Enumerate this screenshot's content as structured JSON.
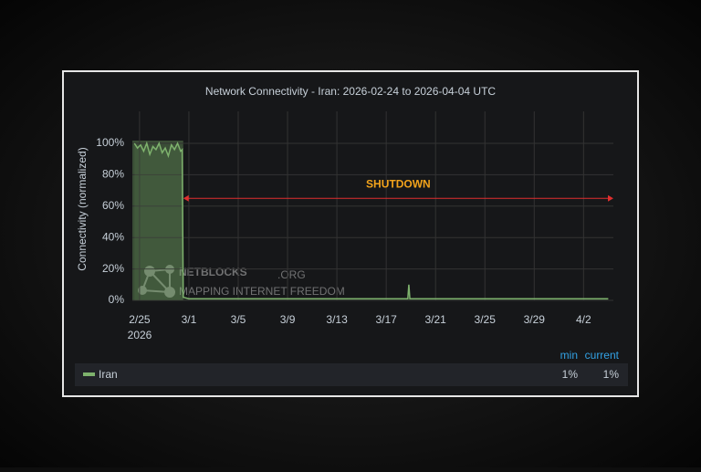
{
  "chart_data": {
    "type": "line",
    "title": "Network Connectivity - Iran: 2026-02-24 to 2026-04-04 UTC",
    "y_label": "Connectivity (normalized)",
    "x_year": "2026",
    "x": [
      "2026-02-24T14:00",
      "2026-02-24T20:00",
      "2026-02-25T02:00",
      "2026-02-25T08:00",
      "2026-02-25T14:00",
      "2026-02-25T20:00",
      "2026-02-26T02:00",
      "2026-02-26T08:00",
      "2026-02-26T14:00",
      "2026-02-26T20:00",
      "2026-02-27T02:00",
      "2026-02-27T08:00",
      "2026-02-27T14:00",
      "2026-02-27T20:00",
      "2026-02-28T02:00",
      "2026-02-28T08:00",
      "2026-02-28T11:00",
      "2026-02-28T13:00",
      "2026-03-01T00:00",
      "2026-03-03T00:00",
      "2026-03-05T00:00",
      "2026-03-07T00:00",
      "2026-03-09T00:00",
      "2026-03-11T00:00",
      "2026-03-13T00:00",
      "2026-03-15T00:00",
      "2026-03-17T00:00",
      "2026-03-18T18:00",
      "2026-03-18T20:00",
      "2026-03-18T22:00",
      "2026-03-20T00:00",
      "2026-03-22T00:00",
      "2026-03-24T00:00",
      "2026-03-26T00:00",
      "2026-03-28T00:00",
      "2026-03-30T00:00",
      "2026-04-01T00:00",
      "2026-04-03T00:00",
      "2026-04-04T00:00"
    ],
    "series": [
      {
        "name": "Iran",
        "color": "#7eb26d",
        "values": [
          100,
          97,
          99,
          95,
          100,
          93,
          98,
          96,
          100,
          94,
          97,
          92,
          99,
          96,
          100,
          95,
          96,
          2,
          1,
          1,
          1,
          1,
          1,
          1,
          1,
          1,
          1,
          1,
          10,
          1,
          1,
          1,
          1,
          1,
          1,
          1,
          1,
          1,
          1
        ]
      }
    ],
    "xlim": [
      "2026-02-24T10:00",
      "2026-04-04T10:00"
    ],
    "xticks": [
      {
        "value": "2026-02-25T00:00",
        "label": "2/25"
      },
      {
        "value": "2026-03-01T00:00",
        "label": "3/1"
      },
      {
        "value": "2026-03-05T00:00",
        "label": "3/5"
      },
      {
        "value": "2026-03-09T00:00",
        "label": "3/9"
      },
      {
        "value": "2026-03-13T00:00",
        "label": "3/13"
      },
      {
        "value": "2026-03-17T00:00",
        "label": "3/17"
      },
      {
        "value": "2026-03-21T00:00",
        "label": "3/21"
      },
      {
        "value": "2026-03-25T00:00",
        "label": "3/25"
      },
      {
        "value": "2026-03-29T00:00",
        "label": "3/29"
      },
      {
        "value": "2026-04-02T00:00",
        "label": "4/2"
      }
    ],
    "ylim": [
      0,
      100
    ],
    "yticks": [
      {
        "value": 0,
        "label": "0%"
      },
      {
        "value": 20,
        "label": "20%"
      },
      {
        "value": 40,
        "label": "40%"
      },
      {
        "value": 60,
        "label": "60%"
      },
      {
        "value": 80,
        "label": "80%"
      },
      {
        "value": 100,
        "label": "100%"
      }
    ],
    "grid": true,
    "shaded_region": [
      "2026-02-24T10:00",
      "2026-02-28T13:00"
    ],
    "annotation": {
      "text": "SHUTDOWN",
      "start": "2026-02-28T13:00",
      "end": "2026-04-04T10:00",
      "y": 65,
      "color": "#e02f2f"
    },
    "watermark": {
      "title": "NETBLOCKS",
      "suffix": ".ORG",
      "subtitle": "MAPPING INTERNET FREEDOM"
    },
    "legend_stats": {
      "headers": [
        "min",
        "current"
      ],
      "values": [
        1,
        1
      ],
      "value_labels": [
        "1%",
        "1%"
      ]
    }
  }
}
